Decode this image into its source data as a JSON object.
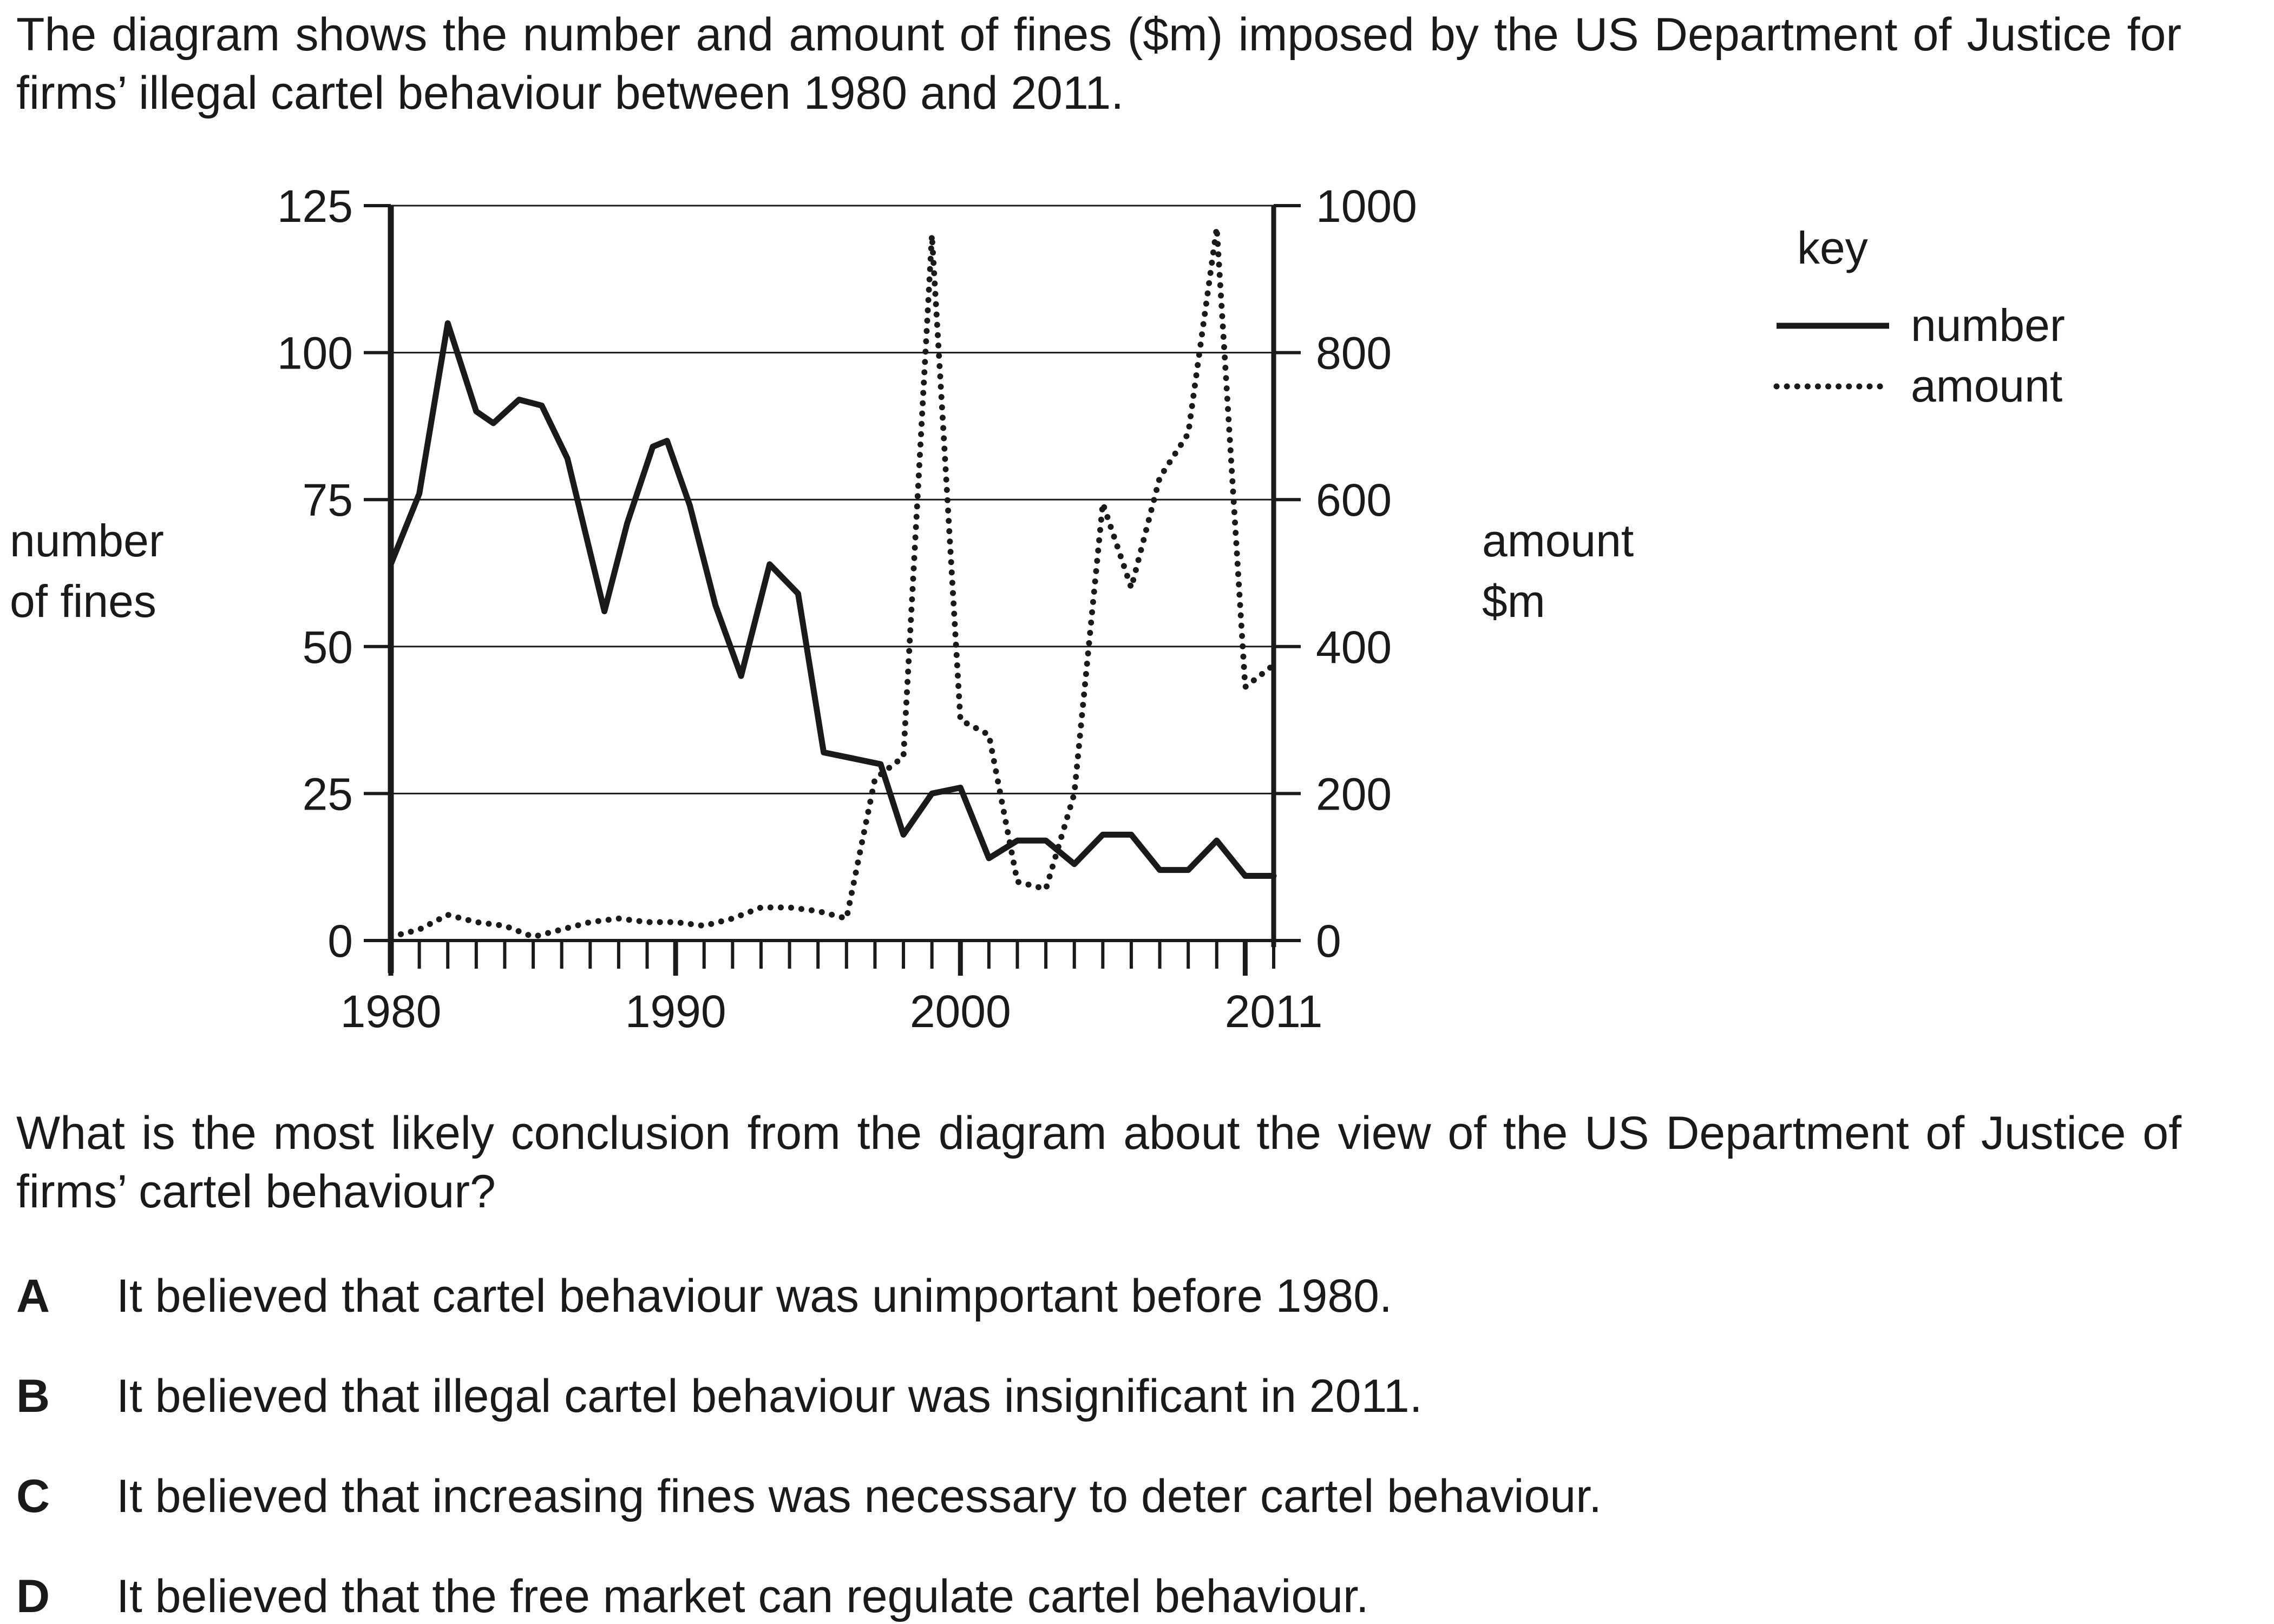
{
  "intro_text": "The diagram shows the number and amount of fines ($m) imposed by the US Department of Justice for firms’ illegal cartel behaviour between 1980 and 2011.",
  "question_text": "What is the most likely conclusion from the diagram about the view of the US Department of Justice of firms’ cartel behaviour?",
  "options": [
    {
      "letter": "A",
      "text": "It believed that cartel behaviour was unimportant before 1980."
    },
    {
      "letter": "B",
      "text": "It believed that illegal cartel behaviour was insignificant in 2011."
    },
    {
      "letter": "C",
      "text": "It believed that increasing fines was necessary to deter cartel behaviour."
    },
    {
      "letter": "D",
      "text": "It believed that the free market can regulate cartel behaviour."
    }
  ],
  "chart_data": {
    "type": "line",
    "title": "",
    "xlabel": "",
    "ylabel_left": [
      "number",
      "of fines"
    ],
    "ylabel_right": [
      "amount",
      "$m"
    ],
    "xlim": [
      1980,
      2011
    ],
    "ylim_left": [
      0,
      125
    ],
    "ylim_right": [
      0,
      1000
    ],
    "x_tick_labels": [
      "1980",
      "1990",
      "2000",
      "2011"
    ],
    "x_tick_values": [
      1980,
      1990,
      2000,
      2011
    ],
    "left_ticks": [
      0,
      25,
      50,
      75,
      100,
      125
    ],
    "right_ticks": [
      0,
      200,
      400,
      600,
      800,
      1000
    ],
    "grid": "horizontal",
    "legend_title": "key",
    "legend_placement": "top-right",
    "series": [
      {
        "name": "number",
        "axis": "left",
        "style": "solid",
        "x": [
          1980,
          1981,
          1982,
          1983,
          1983.6,
          1984.5,
          1985.3,
          1986.2,
          1987.5,
          1988.3,
          1989.2,
          1989.7,
          1990.5,
          1991.4,
          1992.3,
          1993.3,
          1994.3,
          1995.2,
          1996.2,
          1997.2,
          1998,
          1999,
          2000,
          2001,
          2002,
          2003,
          2004,
          2005,
          2006,
          2007,
          2008,
          2009,
          2010,
          2011
        ],
        "values": [
          64,
          76,
          105,
          90,
          88,
          92,
          91,
          82,
          56,
          71,
          84,
          85,
          74,
          57,
          45,
          64,
          59,
          32,
          31,
          30,
          18,
          25,
          26,
          14,
          17,
          17,
          13,
          18,
          18,
          12,
          12,
          17,
          11,
          11
        ]
      },
      {
        "name": "amount",
        "axis": "right",
        "style": "dotted",
        "x": [
          1980,
          1981,
          1982,
          1983,
          1984,
          1985,
          1986,
          1987,
          1988,
          1989,
          1990,
          1991,
          1992,
          1993,
          1994,
          1995,
          1996,
          1997,
          1998,
          1999,
          2000,
          2001,
          2002,
          2003,
          2004,
          2005,
          2006,
          2007,
          2008,
          2009,
          2010,
          2011
        ],
        "values": [
          5,
          15,
          35,
          25,
          20,
          5,
          15,
          25,
          30,
          25,
          25,
          20,
          30,
          45,
          45,
          40,
          30,
          220,
          250,
          960,
          300,
          280,
          80,
          70,
          200,
          595,
          480,
          630,
          690,
          970,
          345,
          375
        ]
      }
    ]
  }
}
